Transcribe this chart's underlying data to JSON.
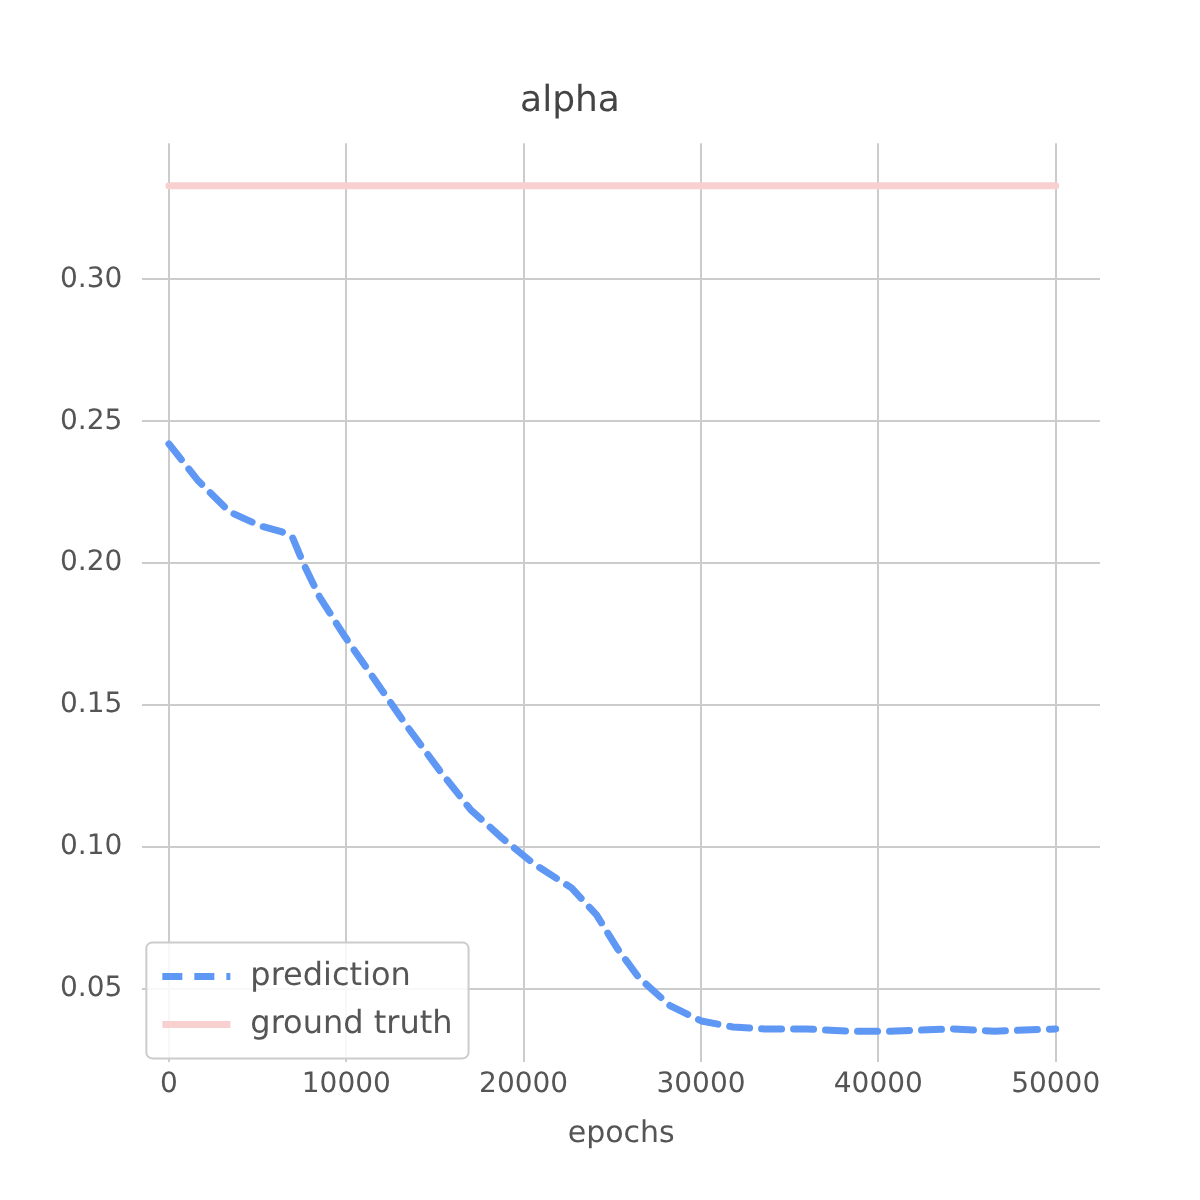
{
  "chart_data": {
    "type": "line",
    "title": "alpha",
    "xlabel": "epochs",
    "xlim": [
      -1500,
      52500
    ],
    "xticks": [
      0,
      10000,
      20000,
      30000,
      40000,
      50000
    ],
    "ylim": [
      0.024,
      0.348
    ],
    "yticks": [
      0.05,
      {
        "value": 0.1,
        "label": "0.10"
      },
      0.15,
      {
        "value": 0.2,
        "label": "0.20"
      },
      0.25,
      {
        "value": 0.3,
        "label": "0.30"
      }
    ],
    "grid": true,
    "legend": "bottom left",
    "marker": "none",
    "series": [
      {
        "name": "prediction",
        "color": "#5f97f5",
        "line_style": "dashed",
        "x": [
          0,
          1650,
          3430,
          5200,
          6380,
          6970,
          7570,
          8500,
          9930,
          11700,
          13480,
          15250,
          17020,
          18800,
          20570,
          22700,
          24110,
          25300,
          26480,
          28250,
          30020,
          31800,
          33570,
          35930,
          38300,
          40660,
          44210,
          46570,
          50000
        ],
        "values": [
          0.242,
          0.229,
          0.218,
          0.213,
          0.211,
          0.209,
          0.2,
          0.188,
          0.174,
          0.158,
          0.142,
          0.127,
          0.113,
          0.103,
          0.094,
          0.0855,
          0.076,
          0.064,
          0.054,
          0.044,
          0.0386,
          0.0365,
          0.0358,
          0.0358,
          0.035,
          0.035,
          0.0358,
          0.035,
          0.0358
        ]
      },
      {
        "name": "ground truth",
        "color": "#f8d0d0",
        "line_style": "solid",
        "x": [
          0,
          50000
        ],
        "values": [
          0.333,
          0.333
        ]
      }
    ]
  }
}
